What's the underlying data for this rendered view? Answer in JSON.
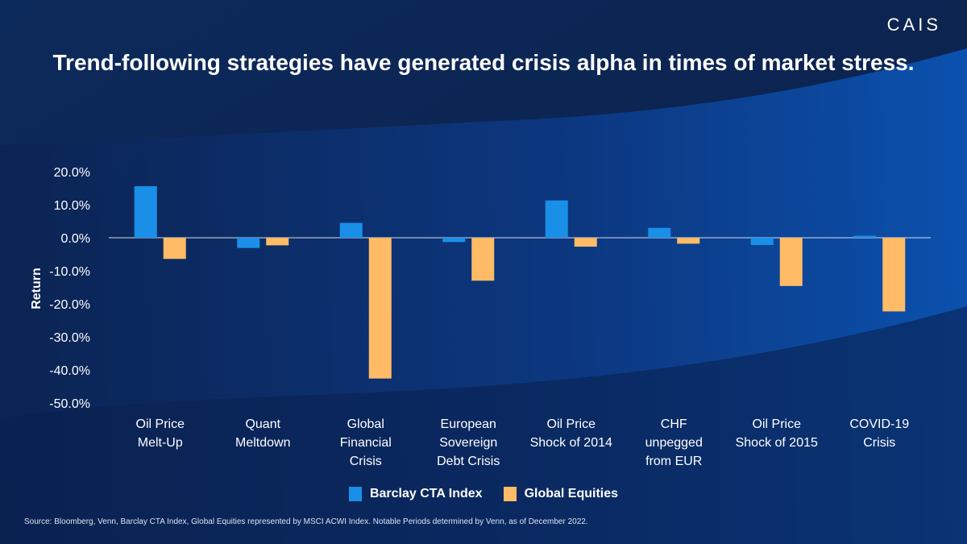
{
  "brand": "CAIS",
  "title": "Trend-following strategies have generated crisis alpha in times of market stress.",
  "source": "Source: Bloomberg, Venn, Barclay CTA Index, Global Equities represented by MSCI ACWI Index. Notable Periods determined by Venn, as of December 2022.",
  "colors": {
    "barclay": "#1a8fe8",
    "equities": "#ffbb66",
    "background_dark": "#0b2452",
    "background_light": "#0a4a9e"
  },
  "chart_data": {
    "type": "bar",
    "ylabel": "Return",
    "ylim": [
      -50,
      20
    ],
    "yticks": [
      "20.0%",
      "10.0%",
      "0.0%",
      "-10.0%",
      "-20.0%",
      "-30.0%",
      "-40.0%",
      "-50.0%"
    ],
    "ytick_values": [
      20,
      10,
      0,
      -10,
      -20,
      -30,
      -40,
      -50
    ],
    "grid": false,
    "legend_position": "bottom",
    "categories": [
      [
        "Oil Price",
        "Melt-Up"
      ],
      [
        "Quant",
        "Meltdown"
      ],
      [
        "Global",
        "Financial",
        "Crisis"
      ],
      [
        "European",
        "Sovereign",
        "Debt Crisis"
      ],
      [
        "Oil Price",
        "Shock of 2014"
      ],
      [
        "CHF",
        "unpegged",
        "from EUR"
      ],
      [
        "Oil Price",
        "Shock of 2015"
      ],
      [
        "COVID-19",
        "Crisis"
      ]
    ],
    "series": [
      {
        "name": "Barclay CTA Index",
        "color": "#1a8fe8",
        "values": [
          15.6,
          -3.1,
          4.5,
          -1.3,
          11.3,
          3.0,
          -2.2,
          0.6
        ]
      },
      {
        "name": "Global Equities",
        "color": "#ffbb66",
        "values": [
          -6.4,
          -2.3,
          -42.6,
          -13.0,
          -2.7,
          -1.8,
          -14.6,
          -22.3
        ]
      }
    ]
  }
}
